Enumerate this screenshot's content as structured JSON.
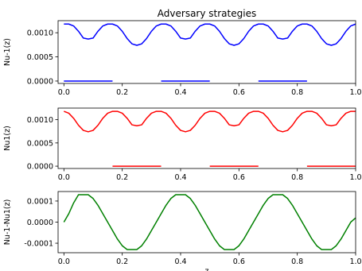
{
  "chart_data": [
    {
      "type": "line",
      "title": "Adversary strategies",
      "ylabel": "Nu-1(z)",
      "xlabel": "",
      "xlim": [
        -0.02,
        1.0
      ],
      "ylim": [
        -5e-05,
        0.00125
      ],
      "xticks": [
        0.0,
        0.2,
        0.4,
        0.6,
        0.8,
        1.0
      ],
      "xtick_labels": [
        "0.0",
        "0.2",
        "0.4",
        "0.6",
        "0.8",
        "1.0"
      ],
      "yticks": [
        0.0,
        0.0005,
        0.001
      ],
      "ytick_labels": [
        "0.0000",
        "0.0005",
        "0.0010"
      ],
      "grid": false,
      "series": [
        {
          "color": "#0000ff",
          "x": [
            0.0,
            0.0167,
            0.0333,
            0.05,
            0.0667,
            0.0833,
            0.1,
            0.1167,
            0.1333,
            0.15,
            0.1667,
            0.1833,
            0.2,
            0.2167,
            0.2333,
            0.25,
            0.2667,
            0.2833,
            0.3,
            0.3167,
            0.3333,
            0.35,
            0.3667,
            0.3833,
            0.4,
            0.4167,
            0.4333,
            0.45,
            0.4667,
            0.4833,
            0.5,
            0.5167,
            0.5333,
            0.55,
            0.5667,
            0.5833,
            0.6,
            0.6167,
            0.6333,
            0.65,
            0.6667,
            0.6833,
            0.7,
            0.7167,
            0.7333,
            0.75,
            0.7667,
            0.7833,
            0.8,
            0.8167,
            0.8333,
            0.85,
            0.8667,
            0.8833,
            0.9,
            0.9167,
            0.9333,
            0.95,
            0.9667,
            0.9833,
            1.0
          ],
          "y": [
            0.00118,
            0.00118,
            0.00114,
            0.00103,
            0.00089,
            0.00087,
            0.00089,
            0.00103,
            0.00114,
            0.00118,
            0.00118,
            0.00114,
            0.00103,
            0.00088,
            0.00077,
            0.00074,
            0.00077,
            0.00088,
            0.00103,
            0.00114,
            0.00118,
            0.00118,
            0.00114,
            0.00103,
            0.00089,
            0.00087,
            0.00089,
            0.00103,
            0.00114,
            0.00118,
            0.00118,
            0.00114,
            0.00103,
            0.00088,
            0.00077,
            0.00074,
            0.00077,
            0.00088,
            0.00103,
            0.00114,
            0.00118,
            0.00118,
            0.00114,
            0.00103,
            0.00089,
            0.00087,
            0.00089,
            0.00103,
            0.00114,
            0.00118,
            0.00118,
            0.00114,
            0.00103,
            0.00088,
            0.00077,
            0.00074,
            0.00077,
            0.00088,
            0.00103,
            0.00114,
            0.00118
          ]
        }
      ],
      "segments": [
        {
          "color": "#0000ff",
          "x": [
            0.0,
            0.1667
          ],
          "y": [
            0.0,
            0.0
          ]
        },
        {
          "color": "#0000ff",
          "x": [
            0.3333,
            0.5
          ],
          "y": [
            0.0,
            0.0
          ]
        },
        {
          "color": "#0000ff",
          "x": [
            0.6667,
            0.8333
          ],
          "y": [
            0.0,
            0.0
          ]
        }
      ]
    },
    {
      "type": "line",
      "ylabel": "Nu1(z)",
      "xlabel": "",
      "xlim": [
        -0.02,
        1.0
      ],
      "ylim": [
        -5e-05,
        0.00125
      ],
      "xticks": [
        0.0,
        0.2,
        0.4,
        0.6,
        0.8,
        1.0
      ],
      "xtick_labels": [
        "0.0",
        "0.2",
        "0.4",
        "0.6",
        "0.8",
        "1.0"
      ],
      "yticks": [
        0.0,
        0.0005,
        0.001
      ],
      "ytick_labels": [
        "0.0000",
        "0.0005",
        "0.0010"
      ],
      "grid": false,
      "series": [
        {
          "color": "#ff0000",
          "x": [
            0.0,
            0.0167,
            0.0333,
            0.05,
            0.0667,
            0.0833,
            0.1,
            0.1167,
            0.1333,
            0.15,
            0.1667,
            0.1833,
            0.2,
            0.2167,
            0.2333,
            0.25,
            0.2667,
            0.2833,
            0.3,
            0.3167,
            0.3333,
            0.35,
            0.3667,
            0.3833,
            0.4,
            0.4167,
            0.4333,
            0.45,
            0.4667,
            0.4833,
            0.5,
            0.5167,
            0.5333,
            0.55,
            0.5667,
            0.5833,
            0.6,
            0.6167,
            0.6333,
            0.65,
            0.6667,
            0.6833,
            0.7,
            0.7167,
            0.7333,
            0.75,
            0.7667,
            0.7833,
            0.8,
            0.8167,
            0.8333,
            0.85,
            0.8667,
            0.8833,
            0.9,
            0.9167,
            0.9333,
            0.95,
            0.9667,
            0.9833,
            1.0
          ],
          "y": [
            0.00118,
            0.00114,
            0.00103,
            0.00088,
            0.00077,
            0.00074,
            0.00077,
            0.00088,
            0.00103,
            0.00114,
            0.00118,
            0.00118,
            0.00114,
            0.00103,
            0.00089,
            0.00087,
            0.00089,
            0.00103,
            0.00114,
            0.00118,
            0.00118,
            0.00114,
            0.00103,
            0.00088,
            0.00077,
            0.00074,
            0.00077,
            0.00088,
            0.00103,
            0.00114,
            0.00118,
            0.00118,
            0.00114,
            0.00103,
            0.00089,
            0.00087,
            0.00089,
            0.00103,
            0.00114,
            0.00118,
            0.00118,
            0.00114,
            0.00103,
            0.00088,
            0.00077,
            0.00074,
            0.00077,
            0.00088,
            0.00103,
            0.00114,
            0.00118,
            0.00118,
            0.00114,
            0.00103,
            0.00089,
            0.00087,
            0.00089,
            0.00103,
            0.00114,
            0.00118,
            0.00118
          ]
        }
      ],
      "segments": [
        {
          "color": "#ff0000",
          "x": [
            0.1667,
            0.3333
          ],
          "y": [
            0.0,
            0.0
          ]
        },
        {
          "color": "#ff0000",
          "x": [
            0.5,
            0.6667
          ],
          "y": [
            0.0,
            0.0
          ]
        },
        {
          "color": "#ff0000",
          "x": [
            0.8333,
            1.0
          ],
          "y": [
            0.0,
            0.0
          ]
        }
      ]
    },
    {
      "type": "line",
      "ylabel": "Nu-1-Nu1(z)",
      "xlabel": "z",
      "xlim": [
        -0.02,
        1.0
      ],
      "ylim": [
        -0.000145,
        0.000145
      ],
      "xticks": [
        0.0,
        0.2,
        0.4,
        0.6,
        0.8,
        1.0
      ],
      "xtick_labels": [
        "0.0",
        "0.2",
        "0.4",
        "0.6",
        "0.8",
        "1.0"
      ],
      "yticks": [
        -0.0001,
        0.0,
        0.0001
      ],
      "ytick_labels": [
        "-0.0001",
        "0.0000",
        "0.0001"
      ],
      "grid": false,
      "series": [
        {
          "color": "#008000",
          "x": [
            0.0,
            0.0167,
            0.0333,
            0.05,
            0.0667,
            0.0833,
            0.1,
            0.1167,
            0.1333,
            0.15,
            0.1667,
            0.1833,
            0.2,
            0.2167,
            0.2333,
            0.25,
            0.2667,
            0.2833,
            0.3,
            0.3167,
            0.3333,
            0.35,
            0.3667,
            0.3833,
            0.4,
            0.4167,
            0.4333,
            0.45,
            0.4667,
            0.4833,
            0.5,
            0.5167,
            0.5333,
            0.55,
            0.5667,
            0.5833,
            0.6,
            0.6167,
            0.6333,
            0.65,
            0.6667,
            0.6833,
            0.7,
            0.7167,
            0.7333,
            0.75,
            0.7667,
            0.7833,
            0.8,
            0.8167,
            0.8333,
            0.85,
            0.8667,
            0.8833,
            0.9,
            0.9167,
            0.9333,
            0.95,
            0.9667,
            0.9833,
            1.0
          ],
          "y": [
            0.0,
            4e-05,
            9.1e-05,
            0.00013,
            0.00013,
            0.00013,
            0.000112,
            8e-05,
            4e-05,
            0.0,
            -4e-05,
            -8e-05,
            -0.000112,
            -0.00013,
            -0.00013,
            -0.00013,
            -0.000112,
            -8e-05,
            -4e-05,
            0.0,
            4e-05,
            8e-05,
            0.000112,
            0.00013,
            0.00013,
            0.00013,
            0.000112,
            8e-05,
            4e-05,
            0.0,
            -4e-05,
            -8e-05,
            -0.000112,
            -0.00013,
            -0.00013,
            -0.00013,
            -0.000112,
            -8e-05,
            -4e-05,
            0.0,
            4e-05,
            8e-05,
            0.000112,
            0.00013,
            0.00013,
            0.00013,
            0.000112,
            8e-05,
            4e-05,
            0.0,
            -4e-05,
            -8e-05,
            -0.000112,
            -0.00013,
            -0.00013,
            -0.00013,
            -0.000112,
            -8e-05,
            -4e-05,
            0.0,
            2e-05
          ]
        }
      ],
      "segments": []
    }
  ]
}
